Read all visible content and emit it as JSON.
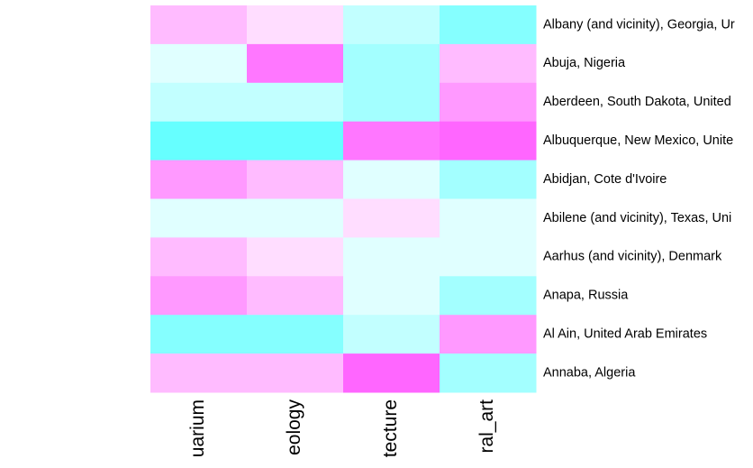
{
  "chart_data": {
    "type": "heatmap",
    "columns": [
      "uarium",
      "eology",
      "tecture",
      "ral_art"
    ],
    "rows": [
      "Albany (and vicinity), Georgia, Ur",
      "Abuja, Nigeria",
      "Aberdeen, South Dakota, United",
      "Albuquerque, New Mexico, Unite",
      "Abidjan, Cote d'Ivoire",
      "Abilene (and vicinity), Texas, Uni",
      "Aarhus (and vicinity), Denmark",
      "Anapa, Russia",
      "Al Ain, United Arab Emirates",
      "Annaba, Algeria"
    ],
    "values": [
      [
        0.4,
        0.2,
        -0.4,
        -0.8
      ],
      [
        -0.2,
        0.8,
        -0.6,
        0.4
      ],
      [
        -0.4,
        -0.4,
        -0.6,
        0.6
      ],
      [
        -1.0,
        -1.0,
        0.8,
        0.9
      ],
      [
        0.6,
        0.4,
        -0.2,
        -0.6
      ],
      [
        -0.2,
        -0.2,
        0.2,
        -0.2
      ],
      [
        0.4,
        0.2,
        -0.2,
        -0.2
      ],
      [
        0.6,
        0.4,
        -0.2,
        -0.6
      ],
      [
        -0.8,
        -0.8,
        -0.4,
        0.6
      ],
      [
        0.4,
        0.4,
        0.9,
        -0.6
      ]
    ],
    "zlim": [
      -1,
      1
    ],
    "colors": [
      "#66ffff",
      "#ffffff",
      "#ff55ff"
    ]
  }
}
